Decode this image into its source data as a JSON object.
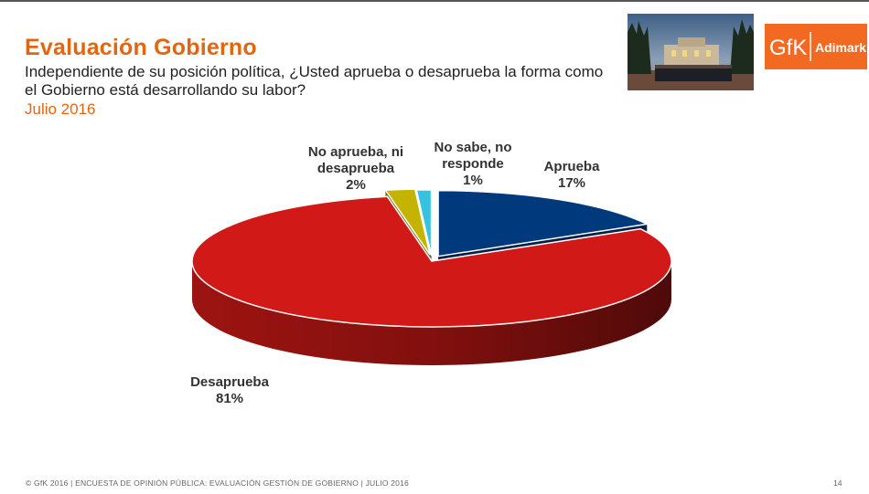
{
  "slide": {
    "title": "Evaluación Gobierno",
    "question": "Independiente de su posición política, ¿Usted aprueba o desaprueba la forma como el Gobierno está desarrollando su labor?",
    "date": "Julio 2016",
    "footer": "© GfK 2016 | ENCUESTA DE OPINIÓN PÚBLICA: EVALUACIÓN GESTIÓN DE GOBIERNO | JULIO 2016",
    "page_number": "14"
  },
  "logo": {
    "mark": "GfK",
    "text": "Adimark",
    "color": "#f26a21"
  },
  "chart_data": {
    "type": "pie",
    "style": "3d-exploded",
    "title": "",
    "slices": [
      {
        "label_lines": [
          "Aprueba"
        ],
        "value": 17,
        "value_label": "17%",
        "color": "#003a7d"
      },
      {
        "label_lines": [
          "Desaprueba"
        ],
        "value": 81,
        "value_label": "81%",
        "color": "#d11a17"
      },
      {
        "label_lines": [
          "No aprueba, ni",
          "desaprueba"
        ],
        "value": 2,
        "value_label": "2%",
        "color": "#c4b400"
      },
      {
        "label_lines": [
          "No sabe, no",
          "responde"
        ],
        "value": 1,
        "value_label": "1%",
        "color": "#35c3e0"
      }
    ]
  }
}
